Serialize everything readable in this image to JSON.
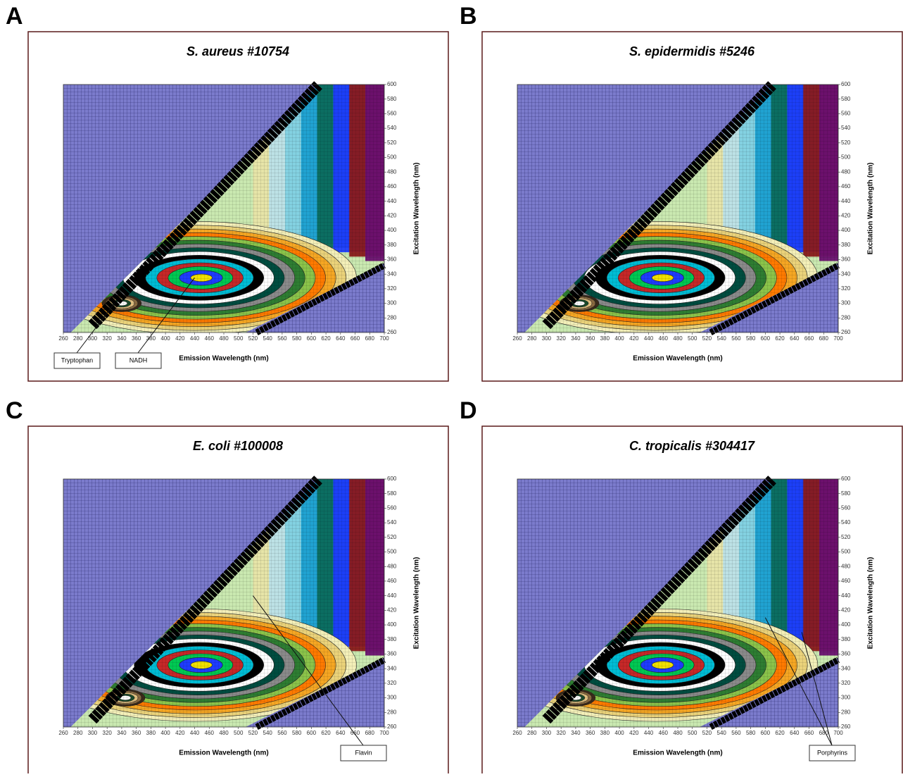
{
  "chart_data": [
    {
      "type": "contour",
      "panel": "A",
      "title": "S. aureus  #10754",
      "x_label": "Emission Wavelength (nm)",
      "y_label": "Excitation Wavelength (nm)",
      "xlim": [
        260,
        700
      ],
      "ylim": [
        260,
        600
      ],
      "xticks": [
        260,
        280,
        300,
        320,
        340,
        360,
        380,
        400,
        420,
        440,
        460,
        480,
        500,
        520,
        540,
        560,
        580,
        600,
        620,
        640,
        660,
        680,
        700
      ],
      "yticks": [
        260,
        280,
        300,
        320,
        340,
        360,
        380,
        400,
        420,
        440,
        460,
        480,
        500,
        520,
        540,
        560,
        580,
        600
      ],
      "annotations": [
        {
          "text": "Tryptophan"
        },
        {
          "text": "NADH"
        }
      ]
    },
    {
      "type": "contour",
      "panel": "B",
      "title": "S. epidermidis  #5246",
      "x_label": "Emission Wavelength (nm)",
      "y_label": "Excitation Wavelength (nm)",
      "xlim": [
        260,
        700
      ],
      "ylim": [
        260,
        600
      ],
      "xticks": [
        260,
        280,
        300,
        320,
        340,
        360,
        380,
        400,
        420,
        440,
        460,
        480,
        500,
        520,
        540,
        560,
        580,
        600,
        620,
        640,
        660,
        680,
        700
      ],
      "yticks": [
        260,
        280,
        300,
        320,
        340,
        360,
        380,
        400,
        420,
        440,
        460,
        480,
        500,
        520,
        540,
        560,
        580,
        600
      ],
      "annotations": []
    },
    {
      "type": "contour",
      "panel": "C",
      "title": "E. coli  #100008",
      "x_label": "Emission Wavelength (nm)",
      "y_label": "Excitation Wavelength (nm)",
      "xlim": [
        260,
        700
      ],
      "ylim": [
        260,
        600
      ],
      "xticks": [
        260,
        280,
        300,
        320,
        340,
        360,
        380,
        400,
        420,
        440,
        460,
        480,
        500,
        520,
        540,
        560,
        580,
        600,
        620,
        640,
        660,
        680,
        700
      ],
      "yticks": [
        260,
        280,
        300,
        320,
        340,
        360,
        380,
        400,
        420,
        440,
        460,
        480,
        500,
        520,
        540,
        560,
        580,
        600
      ],
      "annotations": [
        {
          "text": "Flavin"
        }
      ]
    },
    {
      "type": "contour",
      "panel": "D",
      "title": "C. tropicalis  #304417",
      "x_label": "Emission Wavelength (nm)",
      "y_label": "Excitation Wavelength (nm)",
      "xlim": [
        260,
        700
      ],
      "ylim": [
        260,
        600
      ],
      "xticks": [
        260,
        280,
        300,
        320,
        340,
        360,
        380,
        400,
        420,
        440,
        460,
        480,
        500,
        520,
        540,
        560,
        580,
        600,
        620,
        640,
        660,
        680,
        700
      ],
      "yticks": [
        260,
        280,
        300,
        320,
        340,
        360,
        380,
        400,
        420,
        440,
        460,
        480,
        500,
        520,
        540,
        560,
        580,
        600
      ],
      "annotations": [
        {
          "text": "Porphyrins"
        }
      ]
    }
  ]
}
